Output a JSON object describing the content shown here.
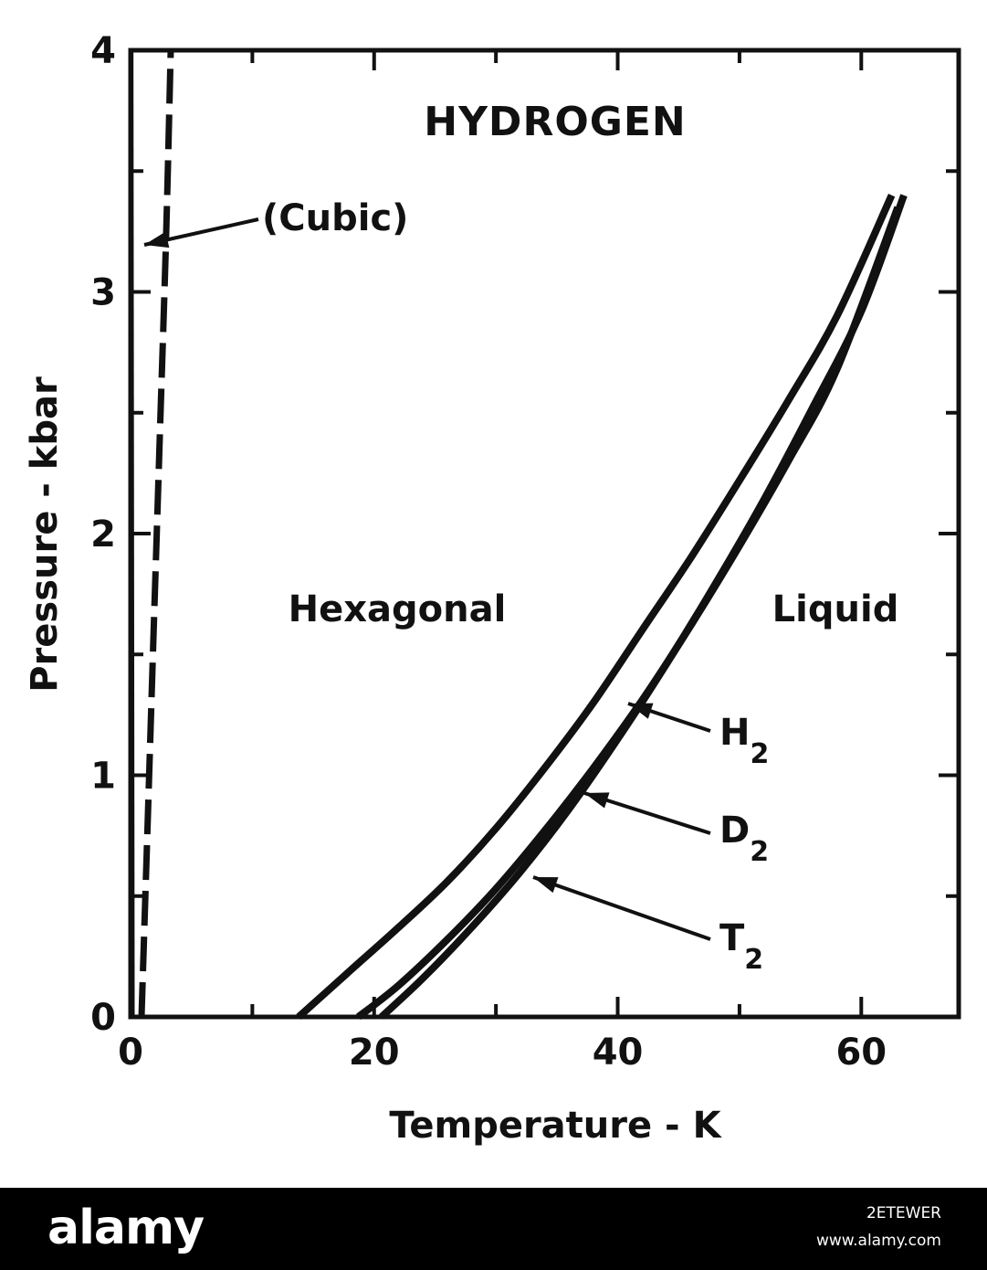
{
  "chart_data": {
    "type": "line",
    "title": "HYDROGEN",
    "xlabel": "Temperature - K",
    "ylabel": "Pressure - kbar",
    "xlim": [
      0,
      68
    ],
    "ylim": [
      0,
      4
    ],
    "x_ticks": [
      0,
      20,
      40,
      60
    ],
    "y_ticks": [
      0,
      1,
      2,
      3,
      4
    ],
    "grid": false,
    "regions": [
      {
        "label": "Hexagonal",
        "x": 22,
        "y": 1.7
      },
      {
        "label": "Liquid",
        "x": 57,
        "y": 1.7
      },
      {
        "label": "(Cubic)",
        "x": 11.5,
        "y": 3.3
      }
    ],
    "series": [
      {
        "name": "H",
        "sub": "2",
        "style": "solid",
        "x": [
          13.8,
          18,
          22,
          26,
          30,
          34,
          38,
          42,
          46,
          50,
          54,
          58,
          62.5
        ],
        "y": [
          0,
          0.19,
          0.37,
          0.56,
          0.78,
          1.03,
          1.3,
          1.6,
          1.9,
          2.22,
          2.55,
          2.9,
          3.4
        ]
      },
      {
        "name": "D",
        "sub": "2",
        "style": "solid",
        "x": [
          18.7,
          22,
          26,
          30,
          34,
          38,
          42,
          46,
          50,
          54,
          58,
          63
        ],
        "y": [
          0,
          0.13,
          0.32,
          0.53,
          0.77,
          1.03,
          1.31,
          1.62,
          1.95,
          2.3,
          2.68,
          3.35
        ]
      },
      {
        "name": "T",
        "sub": "2",
        "style": "solid",
        "x": [
          20.6,
          24,
          28,
          32,
          36,
          40,
          44,
          48,
          52,
          56,
          60,
          63.5
        ],
        "y": [
          0,
          0.16,
          0.37,
          0.6,
          0.86,
          1.15,
          1.46,
          1.79,
          2.14,
          2.52,
          2.92,
          3.4
        ]
      },
      {
        "name": "",
        "style": "dashed",
        "x": [
          0.9,
          1.4,
          1.9,
          2.4,
          2.9,
          3.3
        ],
        "y": [
          0,
          0.8,
          1.6,
          2.4,
          3.2,
          4.0
        ]
      }
    ]
  },
  "footer": {
    "logo": "alamy",
    "image_id": "2ETEWER",
    "site": "www.alamy.com"
  }
}
